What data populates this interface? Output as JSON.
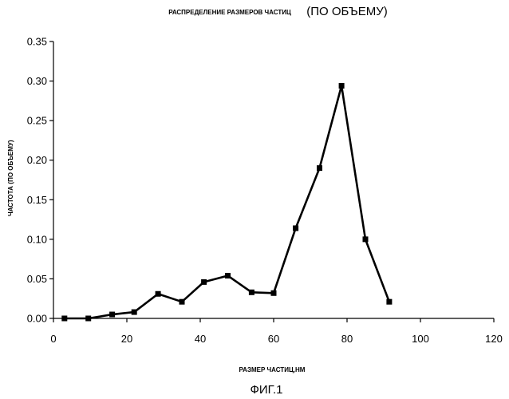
{
  "chart_data": {
    "type": "line",
    "title_main": "РАСПРЕДЕЛЕНИЕ РАЗМЕРОВ ЧАСТИЦ",
    "title_sub": "(ПО ОБЪЕМУ)",
    "xlabel": "РАЗМЕР ЧАСТИЦ,НМ",
    "ylabel_main": "ЧАСТОТА",
    "ylabel_sub": "(ПО ОБЪЕМУ)",
    "figure_label": "ФИГ.1",
    "xlim": [
      0,
      120
    ],
    "ylim": [
      0,
      0.35
    ],
    "x_ticks": [
      "0",
      "20",
      "40",
      "60",
      "80",
      "100",
      "120"
    ],
    "y_ticks": [
      "0.00",
      "0.05",
      "0.10",
      "0.15",
      "0.20",
      "0.25",
      "0.30",
      "0.35"
    ],
    "grid": false,
    "series": [
      {
        "x": [
          3,
          9.5,
          16,
          22,
          28.5,
          35,
          41,
          47.5,
          54,
          60,
          66,
          72.5,
          78.5,
          85,
          91.5
        ],
        "y": [
          0.0,
          0.0,
          0.005,
          0.008,
          0.031,
          0.021,
          0.046,
          0.054,
          0.033,
          0.032,
          0.114,
          0.19,
          0.294,
          0.1,
          0.021
        ]
      }
    ]
  }
}
